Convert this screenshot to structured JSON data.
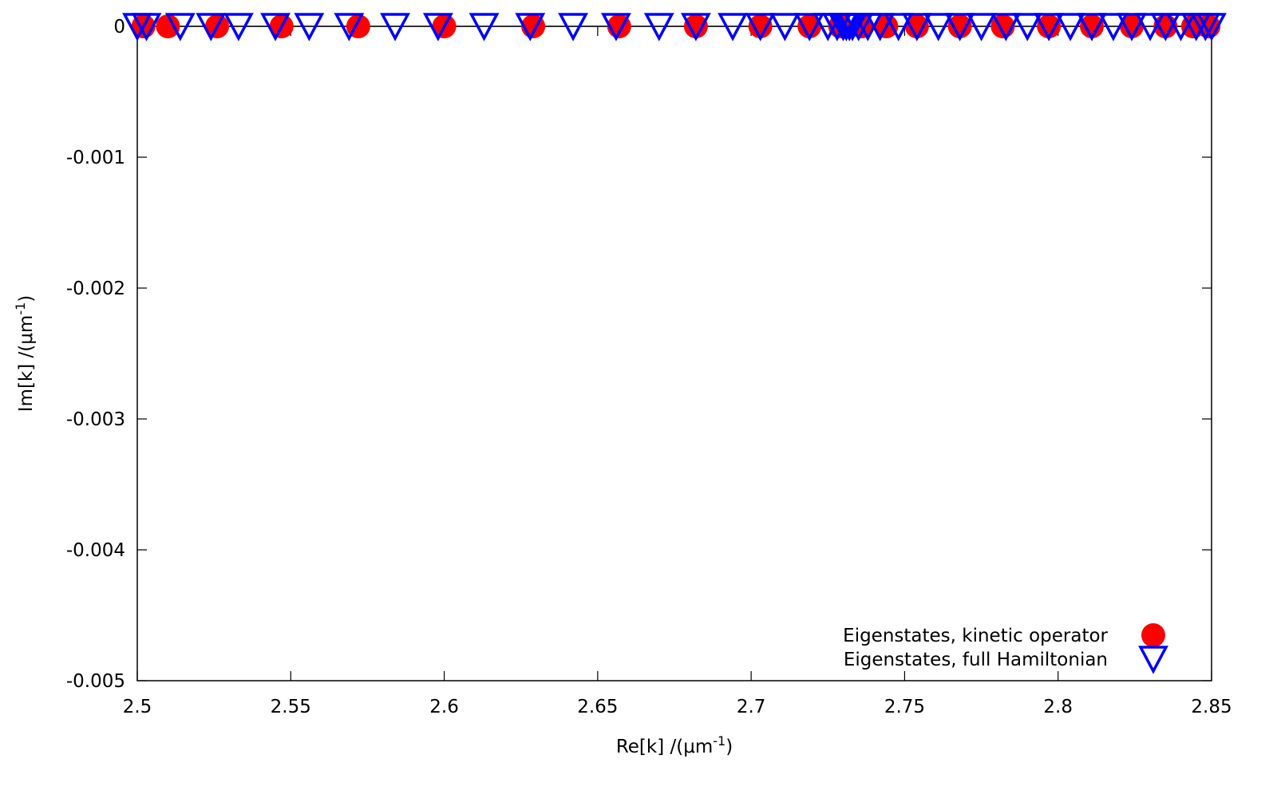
{
  "chart_data": {
    "type": "scatter",
    "title": "",
    "xlabel": {
      "main": "Re[k] /(μm",
      "sup": "-1",
      "close": ")"
    },
    "ylabel": {
      "main": "Im[k] /(μm",
      "sup": "-1",
      "close": ")"
    },
    "xlim": [
      2.5,
      2.85
    ],
    "ylim": [
      -0.005,
      0
    ],
    "xticks": [
      2.5,
      2.55,
      2.6,
      2.65,
      2.7,
      2.75,
      2.8,
      2.85
    ],
    "xtick_labels": [
      "2.5",
      "2.55",
      "2.6",
      "2.65",
      "2.7",
      "2.75",
      "2.8",
      "2.85"
    ],
    "yticks": [
      0,
      -0.001,
      -0.002,
      -0.003,
      -0.004,
      -0.005
    ],
    "ytick_labels": [
      "0",
      "-0.001",
      "-0.002",
      "-0.003",
      "-0.004",
      "-0.005"
    ],
    "grid": false,
    "zero_line": true,
    "legend_position": "bottom-right",
    "series": [
      {
        "name": "Eigenstates, kinetic operator",
        "marker": "filled-circle",
        "color": "#ff0000",
        "x": [
          2.502,
          2.51,
          2.526,
          2.547,
          2.572,
          2.6,
          2.629,
          2.657,
          2.682,
          2.703,
          2.719,
          2.729,
          2.736,
          2.744,
          2.754,
          2.768,
          2.782,
          2.797,
          2.811,
          2.824,
          2.835,
          2.844,
          2.849
        ],
        "y": [
          0,
          0,
          0,
          0,
          0,
          0,
          0,
          0,
          0,
          0,
          0,
          0,
          0,
          0,
          0,
          0,
          0,
          0,
          0,
          0,
          0,
          0,
          0
        ]
      },
      {
        "name": "Eigenstates, full Hamiltonian",
        "marker": "open-triangle-down",
        "color": "#0000ff",
        "x": [
          2.5,
          2.503,
          2.514,
          2.524,
          2.533,
          2.545,
          2.556,
          2.569,
          2.584,
          2.598,
          2.613,
          2.628,
          2.642,
          2.656,
          2.67,
          2.682,
          2.694,
          2.703,
          2.711,
          2.719,
          2.725,
          2.728,
          2.73,
          2.731,
          2.732,
          2.733,
          2.735,
          2.738,
          2.742,
          2.748,
          2.754,
          2.761,
          2.768,
          2.775,
          2.783,
          2.79,
          2.797,
          2.804,
          2.811,
          2.818,
          2.824,
          2.83,
          2.835,
          2.84,
          2.845,
          2.848,
          2.85
        ],
        "y": [
          0,
          0,
          0,
          0,
          0,
          0,
          0,
          0,
          0,
          0,
          0,
          0,
          0,
          0,
          0,
          0,
          0,
          0,
          0,
          0,
          0,
          0,
          0,
          0,
          0,
          0,
          0,
          0,
          0,
          0,
          0,
          0,
          0,
          0,
          0,
          0,
          0,
          0,
          0,
          0,
          0,
          0,
          0,
          0,
          0,
          0,
          0
        ]
      }
    ]
  }
}
